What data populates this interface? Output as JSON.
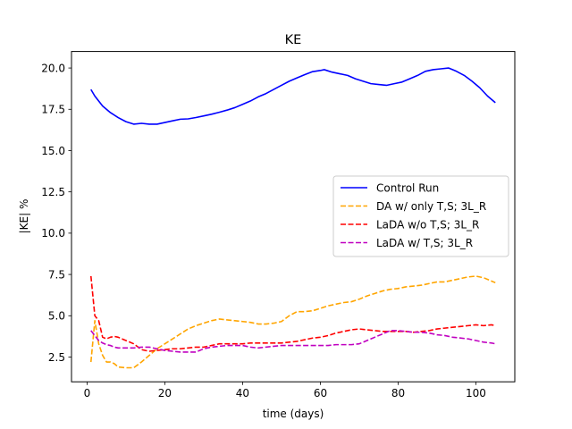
{
  "chart_data": {
    "type": "line",
    "title": "KE",
    "xlabel": "time (days)",
    "ylabel": "|KE| %",
    "xlim": [
      -4,
      110
    ],
    "ylim": [
      1.0,
      21.0
    ],
    "xticks": [
      0,
      20,
      40,
      60,
      80,
      100
    ],
    "yticks": [
      2.5,
      5.0,
      7.5,
      10.0,
      12.5,
      15.0,
      17.5,
      20.0
    ],
    "xtick_labels": [
      "0",
      "20",
      "40",
      "60",
      "80",
      "100"
    ],
    "ytick_labels": [
      "2.5",
      "5.0",
      "7.5",
      "10.0",
      "12.5",
      "15.0",
      "17.5",
      "20.0"
    ],
    "grid": false,
    "legend_position": "center-right",
    "series": [
      {
        "name": "Control Run",
        "color": "#0000ff",
        "style": "solid",
        "x": [
          1,
          2,
          4,
          6,
          8,
          10,
          12,
          14,
          16,
          18,
          20,
          22,
          24,
          26,
          28,
          30,
          32,
          34,
          36,
          38,
          40,
          42,
          44,
          46,
          48,
          50,
          52,
          54,
          56,
          58,
          60,
          61,
          63,
          65,
          67,
          69,
          71,
          73,
          75,
          77,
          79,
          81,
          83,
          85,
          87,
          89,
          91,
          93,
          95,
          97,
          99,
          101,
          103,
          105
        ],
        "y": [
          18.7,
          18.3,
          17.7,
          17.3,
          17.0,
          16.75,
          16.6,
          16.65,
          16.6,
          16.6,
          16.7,
          16.8,
          16.9,
          16.92,
          17.0,
          17.1,
          17.2,
          17.32,
          17.45,
          17.6,
          17.8,
          18.0,
          18.25,
          18.45,
          18.7,
          18.95,
          19.2,
          19.4,
          19.6,
          19.78,
          19.85,
          19.9,
          19.75,
          19.65,
          19.55,
          19.35,
          19.2,
          19.05,
          19.0,
          18.95,
          19.05,
          19.15,
          19.35,
          19.55,
          19.8,
          19.9,
          19.95,
          20.0,
          19.8,
          19.55,
          19.2,
          18.8,
          18.3,
          17.9
        ]
      },
      {
        "name": "DA w/ only T,S; 3L_R",
        "color": "#ffa500",
        "style": "dashed",
        "x": [
          1,
          2,
          3,
          4,
          5,
          6,
          7,
          8,
          10,
          12,
          14,
          16,
          18,
          20,
          22,
          24,
          26,
          28,
          30,
          32,
          34,
          36,
          38,
          40,
          42,
          44,
          46,
          48,
          50,
          52,
          54,
          56,
          58,
          60,
          62,
          64,
          66,
          68,
          70,
          72,
          74,
          76,
          78,
          80,
          82,
          84,
          86,
          88,
          90,
          92,
          94,
          96,
          98,
          100,
          102,
          104,
          105
        ],
        "y": [
          2.2,
          4.7,
          3.3,
          2.6,
          2.2,
          2.2,
          2.1,
          1.9,
          1.85,
          1.85,
          2.2,
          2.6,
          3.0,
          3.3,
          3.6,
          3.9,
          4.2,
          4.4,
          4.55,
          4.7,
          4.8,
          4.75,
          4.7,
          4.65,
          4.6,
          4.5,
          4.5,
          4.55,
          4.65,
          5.0,
          5.25,
          5.25,
          5.3,
          5.45,
          5.6,
          5.7,
          5.8,
          5.85,
          6.0,
          6.2,
          6.35,
          6.5,
          6.6,
          6.65,
          6.75,
          6.8,
          6.85,
          6.95,
          7.05,
          7.05,
          7.15,
          7.25,
          7.35,
          7.4,
          7.3,
          7.1,
          7.0
        ]
      },
      {
        "name": "LaDA w/o T,S; 3L_R",
        "color": "#ff0000",
        "style": "dashed",
        "x": [
          1,
          2,
          3,
          4,
          5,
          6,
          7,
          8,
          10,
          12,
          14,
          16,
          18,
          20,
          22,
          24,
          26,
          28,
          30,
          32,
          34,
          36,
          38,
          40,
          42,
          44,
          46,
          48,
          50,
          52,
          54,
          56,
          58,
          60,
          62,
          64,
          66,
          68,
          70,
          72,
          74,
          76,
          78,
          80,
          82,
          84,
          86,
          88,
          90,
          92,
          94,
          96,
          98,
          100,
          102,
          104,
          105
        ],
        "y": [
          7.4,
          5.0,
          4.7,
          3.7,
          3.6,
          3.7,
          3.75,
          3.7,
          3.5,
          3.3,
          2.95,
          2.85,
          2.9,
          2.95,
          3.0,
          3.0,
          3.05,
          3.1,
          3.1,
          3.2,
          3.3,
          3.3,
          3.3,
          3.3,
          3.35,
          3.35,
          3.35,
          3.35,
          3.35,
          3.4,
          3.45,
          3.55,
          3.65,
          3.7,
          3.8,
          3.95,
          4.05,
          4.15,
          4.2,
          4.15,
          4.1,
          4.05,
          4.05,
          4.05,
          4.05,
          4.0,
          4.05,
          4.1,
          4.2,
          4.25,
          4.3,
          4.35,
          4.4,
          4.45,
          4.4,
          4.45,
          4.4
        ]
      },
      {
        "name": "LaDA w/ T,S; 3L_R",
        "color": "#c000c0",
        "style": "dashed",
        "x": [
          1,
          2,
          3,
          4,
          5,
          6,
          7,
          8,
          10,
          12,
          14,
          16,
          18,
          20,
          22,
          24,
          26,
          28,
          30,
          32,
          34,
          36,
          38,
          40,
          42,
          44,
          46,
          48,
          50,
          52,
          54,
          56,
          58,
          60,
          62,
          64,
          66,
          68,
          70,
          72,
          74,
          76,
          78,
          80,
          82,
          84,
          86,
          88,
          90,
          92,
          94,
          96,
          98,
          100,
          102,
          104,
          105
        ],
        "y": [
          4.1,
          3.8,
          3.5,
          3.35,
          3.25,
          3.2,
          3.1,
          3.05,
          3.05,
          3.05,
          3.1,
          3.1,
          3.0,
          2.9,
          2.85,
          2.8,
          2.8,
          2.8,
          3.0,
          3.1,
          3.15,
          3.2,
          3.2,
          3.2,
          3.1,
          3.05,
          3.1,
          3.15,
          3.2,
          3.2,
          3.2,
          3.2,
          3.2,
          3.2,
          3.2,
          3.25,
          3.25,
          3.25,
          3.3,
          3.5,
          3.7,
          3.9,
          4.1,
          4.1,
          4.05,
          4.0,
          4.0,
          3.95,
          3.85,
          3.8,
          3.7,
          3.65,
          3.6,
          3.5,
          3.4,
          3.35,
          3.3
        ]
      }
    ]
  }
}
